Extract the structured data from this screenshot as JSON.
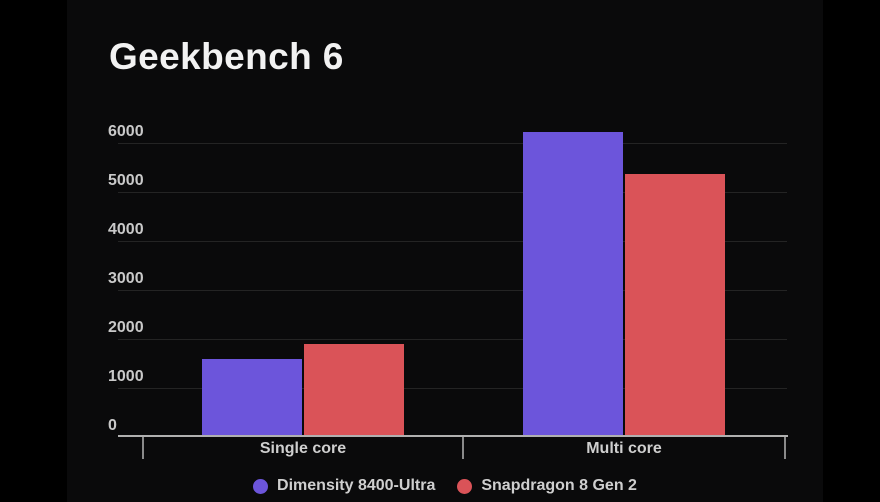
{
  "title": "Geekbench 6",
  "page": {
    "background_color": "#000000",
    "card_background_color": "#0a0a0b"
  },
  "chart_data": {
    "type": "bar",
    "title": "Geekbench 6",
    "categories": [
      "Single core",
      "Multi core"
    ],
    "series": [
      {
        "name": "Dimensity 8400-Ultra",
        "color": "#6c55db",
        "values": [
          1590,
          6230
        ]
      },
      {
        "name": "Snapdragon 8 Gen 2",
        "color": "#da5358",
        "values": [
          1890,
          5360
        ]
      }
    ],
    "xlabel": "",
    "ylabel": "",
    "ylim": [
      0,
      6300
    ],
    "yticks": [
      0,
      1000,
      2000,
      3000,
      4000,
      5000,
      6000
    ],
    "grid": true,
    "legend_position": "bottom",
    "axis_color": "#b0b0b0",
    "gridline_color": "#242424",
    "tick_label_color": "#c9c9c9"
  }
}
